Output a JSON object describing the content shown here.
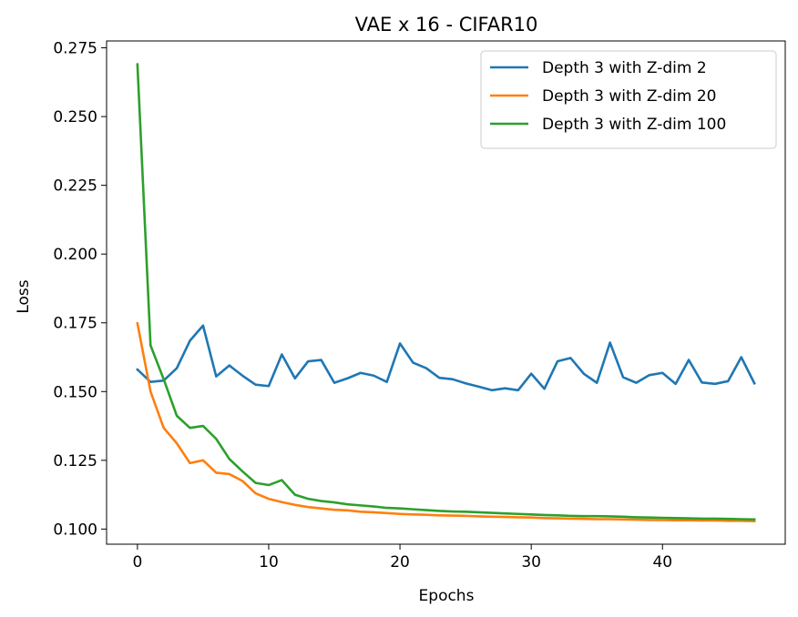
{
  "chart_data": {
    "type": "line",
    "title": "VAE x 16 - CIFAR10",
    "xlabel": "Epochs",
    "ylabel": "Loss",
    "xlim": [
      -2.35,
      49.35
    ],
    "ylim": [
      0.0945,
      0.2775
    ],
    "xticks": [
      0,
      10,
      20,
      30,
      40
    ],
    "xtick_labels": [
      "0",
      "10",
      "20",
      "30",
      "40"
    ],
    "yticks": [
      0.1,
      0.125,
      0.15,
      0.175,
      0.2,
      0.225,
      0.25,
      0.275
    ],
    "ytick_labels": [
      "0.100",
      "0.125",
      "0.150",
      "0.175",
      "0.200",
      "0.225",
      "0.250",
      "0.275"
    ],
    "grid": false,
    "legend_position": "top-right",
    "x": [
      0,
      1,
      2,
      3,
      4,
      5,
      6,
      7,
      8,
      9,
      10,
      11,
      12,
      13,
      14,
      15,
      16,
      17,
      18,
      19,
      20,
      21,
      22,
      23,
      24,
      25,
      26,
      27,
      28,
      29,
      30,
      31,
      32,
      33,
      34,
      35,
      36,
      37,
      38,
      39,
      40,
      41,
      42,
      43,
      44,
      45,
      46,
      47
    ],
    "series": [
      {
        "name": "Depth 3 with Z-dim 2",
        "color": "#1f77b4",
        "values": [
          0.158,
          0.1535,
          0.154,
          0.1585,
          0.1685,
          0.174,
          0.1555,
          0.1595,
          0.1558,
          0.1525,
          0.152,
          0.1635,
          0.1548,
          0.161,
          0.1615,
          0.1532,
          0.1548,
          0.1568,
          0.1558,
          0.1535,
          0.1675,
          0.1605,
          0.1585,
          0.155,
          0.1545,
          0.153,
          0.1518,
          0.1505,
          0.1512,
          0.1505,
          0.1565,
          0.151,
          0.161,
          0.1622,
          0.1565,
          0.1532,
          0.1678,
          0.1552,
          0.1532,
          0.156,
          0.1568,
          0.1528,
          0.1615,
          0.1533,
          0.1528,
          0.1538,
          0.1625,
          0.153
        ]
      },
      {
        "name": "Depth 3 with Z-dim 20",
        "color": "#ff7f0e",
        "values": [
          0.1748,
          0.15,
          0.1368,
          0.1312,
          0.124,
          0.125,
          0.1205,
          0.12,
          0.1175,
          0.113,
          0.111,
          0.1098,
          0.1088,
          0.108,
          0.1075,
          0.107,
          0.1068,
          0.1063,
          0.1061,
          0.1058,
          0.1055,
          0.1053,
          0.1052,
          0.105,
          0.1049,
          0.1048,
          0.1046,
          0.1045,
          0.1044,
          0.1043,
          0.1042,
          0.104,
          0.1039,
          0.1038,
          0.1037,
          0.1036,
          0.1036,
          0.1035,
          0.1034,
          0.1033,
          0.1033,
          0.1032,
          0.1032,
          0.1031,
          0.1031,
          0.103,
          0.103,
          0.1029
        ]
      },
      {
        "name": "Depth 3 with Z-dim 100",
        "color": "#2ca02c",
        "values": [
          0.269,
          0.1668,
          0.1545,
          0.1412,
          0.1368,
          0.1375,
          0.1328,
          0.1255,
          0.121,
          0.1168,
          0.116,
          0.1178,
          0.1125,
          0.111,
          0.1102,
          0.1097,
          0.109,
          0.1086,
          0.1082,
          0.1077,
          0.1075,
          0.1072,
          0.1069,
          0.1066,
          0.1064,
          0.1063,
          0.1061,
          0.1059,
          0.1057,
          0.1055,
          0.1053,
          0.1051,
          0.105,
          0.1048,
          0.1047,
          0.1047,
          0.1046,
          0.1045,
          0.1043,
          0.1042,
          0.1041,
          0.104,
          0.1039,
          0.1038,
          0.1038,
          0.1037,
          0.1036,
          0.1035
        ]
      }
    ]
  }
}
